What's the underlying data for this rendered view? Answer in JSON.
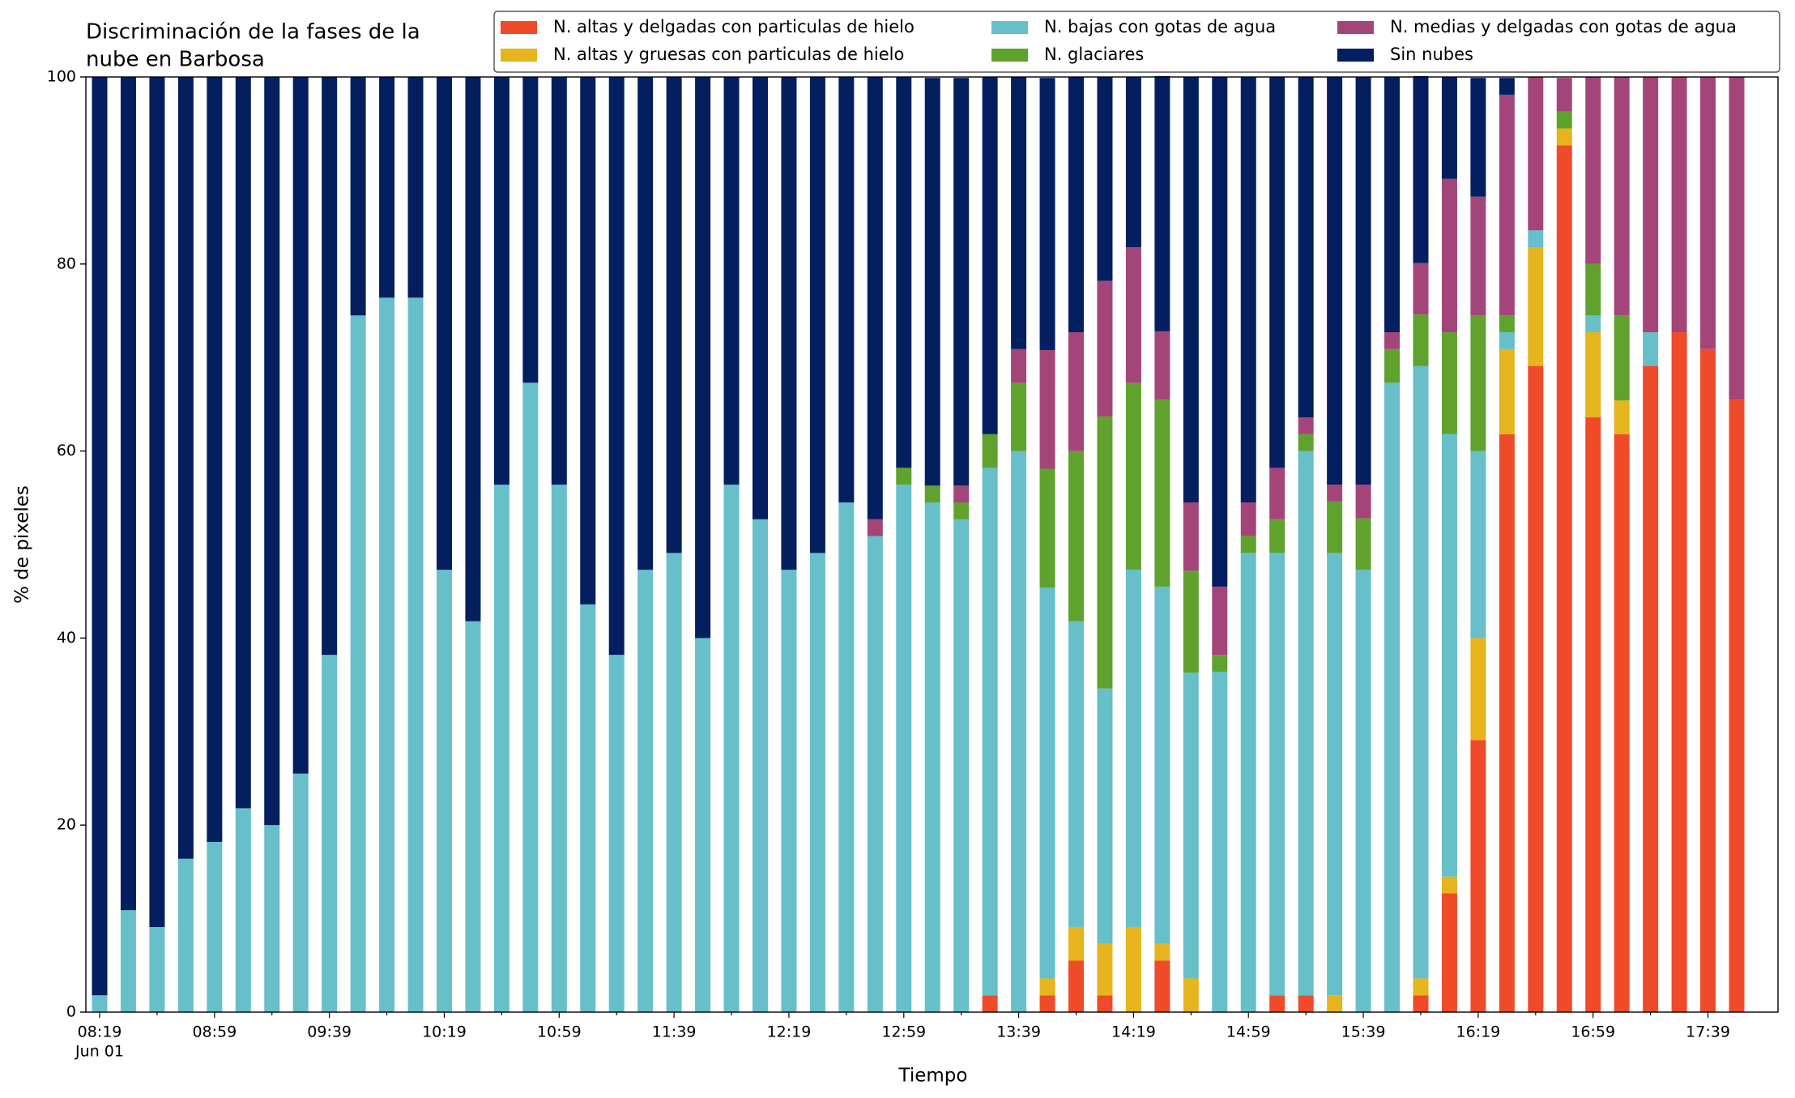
{
  "chart_data": {
    "type": "stacked_bar",
    "title": [
      "Discriminación de la fases de la",
      "nube en Barbosa"
    ],
    "x_label": "Tiempo",
    "y_label": "% de pixeles",
    "x_date": "Jun 01",
    "categories": [
      "08:19",
      null,
      null,
      null,
      "08:59",
      null,
      null,
      null,
      "09:39",
      null,
      null,
      null,
      "10:19",
      null,
      null,
      null,
      "10:59",
      null,
      null,
      null,
      "11:39",
      null,
      null,
      null,
      "12:19",
      null,
      null,
      null,
      "12:59",
      null,
      null,
      null,
      "13:39",
      null,
      null,
      null,
      "14:19",
      null,
      null,
      null,
      "14:59",
      null,
      null,
      null,
      "15:39",
      null,
      null,
      null,
      "16:19",
      null,
      null,
      null,
      "16:59",
      null,
      null,
      null,
      "17:39",
      null
    ],
    "ylim": [
      0,
      100
    ],
    "yticks": [
      0,
      20,
      40,
      60,
      80,
      100
    ],
    "legend": "top-right",
    "series": [
      {
        "name": "N. altas y delgadas con particulas de hielo",
        "color": "#ef4b2a",
        "values": [
          0,
          0,
          0,
          0,
          0,
          0,
          0,
          0,
          0,
          0,
          0,
          0,
          0,
          0,
          0,
          0,
          0,
          0,
          0,
          0,
          0,
          0,
          0,
          0,
          0,
          0,
          0,
          0,
          0,
          0,
          0,
          1.8,
          0,
          1.8,
          5.5,
          1.8,
          0,
          5.5,
          0,
          0,
          0,
          1.8,
          1.8,
          0,
          0,
          0,
          1.8,
          12.7,
          29.1,
          61.8,
          69.1,
          92.7,
          63.6,
          61.8,
          69.1,
          72.7,
          70.9,
          65.5
        ]
      },
      {
        "name": "N. altas y gruesas con particulas de hielo",
        "color": "#e6b41c",
        "values": [
          0,
          0,
          0,
          0,
          0,
          0,
          0,
          0,
          0,
          0,
          0,
          0,
          0,
          0,
          0,
          0,
          0,
          0,
          0,
          0,
          0,
          0,
          0,
          0,
          0,
          0,
          0,
          0,
          0,
          0,
          0,
          0,
          0,
          1.8,
          3.6,
          5.5,
          9.1,
          1.8,
          3.6,
          0,
          0,
          0,
          0,
          1.8,
          0,
          0,
          1.8,
          1.8,
          10.9,
          9.1,
          12.7,
          1.8,
          9.1,
          3.6,
          0,
          0,
          0,
          0
        ]
      },
      {
        "name": "N. bajas con gotas de agua",
        "color": "#67bfca",
        "values": [
          1.8,
          10.9,
          9.1,
          16.4,
          18.2,
          21.8,
          20,
          25.5,
          38.2,
          74.5,
          76.4,
          76.4,
          47.3,
          41.8,
          56.4,
          67.3,
          56.4,
          43.6,
          38.2,
          47.3,
          49.1,
          40,
          56.4,
          52.7,
          47.3,
          49.1,
          54.5,
          50.9,
          56.4,
          54.5,
          52.7,
          56.4,
          60,
          41.8,
          32.7,
          27.3,
          38.2,
          38.2,
          32.7,
          36.4,
          49.1,
          47.3,
          58.2,
          47.3,
          47.3,
          67.3,
          65.5,
          47.3,
          20,
          1.8,
          1.8,
          0,
          1.8,
          0,
          3.6,
          0,
          0,
          0
        ]
      },
      {
        "name": "N. glaciares",
        "color": "#5fa22d",
        "values": [
          0,
          0,
          0,
          0,
          0,
          0,
          0,
          0,
          0,
          0,
          0,
          0,
          0,
          0,
          0,
          0,
          0,
          0,
          0,
          0,
          0,
          0,
          0,
          0,
          0,
          0,
          0,
          0,
          1.8,
          1.8,
          1.8,
          3.6,
          7.3,
          12.7,
          18.2,
          29.1,
          20,
          20,
          10.9,
          1.8,
          1.8,
          3.6,
          1.8,
          5.5,
          5.5,
          3.6,
          5.5,
          10.9,
          14.5,
          1.8,
          0,
          1.8,
          5.5,
          9.1,
          0,
          0,
          0,
          0
        ]
      },
      {
        "name": "N. medias y delgadas con gotas de agua",
        "color": "#a4457a",
        "values": [
          0,
          0,
          0,
          0,
          0,
          0,
          0,
          0,
          0,
          0,
          0,
          0,
          0,
          0,
          0,
          0,
          0,
          0,
          0,
          0,
          0,
          0,
          0,
          0,
          0,
          0,
          0,
          1.8,
          0,
          0,
          1.8,
          0,
          3.6,
          12.7,
          12.7,
          14.5,
          14.5,
          7.3,
          7.3,
          7.3,
          3.6,
          5.5,
          1.8,
          1.8,
          3.6,
          1.8,
          5.5,
          16.4,
          12.7,
          23.6,
          16.4,
          3.6,
          20,
          25.5,
          27.3,
          27.3,
          29.1,
          34.5
        ]
      },
      {
        "name": "Sin nubes",
        "color": "#041f60",
        "values": [
          98.2,
          89.1,
          90.9,
          83.6,
          81.8,
          78.2,
          80,
          74.5,
          61.8,
          25.5,
          23.6,
          23.6,
          52.7,
          58.2,
          43.6,
          32.7,
          43.6,
          56.4,
          61.8,
          52.7,
          50.9,
          60,
          43.6,
          47.3,
          52.7,
          50.9,
          45.5,
          47.3,
          41.8,
          43.6,
          43.6,
          38.2,
          29.1,
          29.1,
          27.3,
          21.8,
          18.2,
          27.3,
          45.5,
          54.5,
          45.5,
          41.8,
          36.4,
          43.6,
          43.6,
          27.3,
          20,
          10.9,
          12.7,
          1.8,
          0,
          0,
          0,
          0,
          0,
          0,
          0,
          0
        ]
      }
    ]
  }
}
